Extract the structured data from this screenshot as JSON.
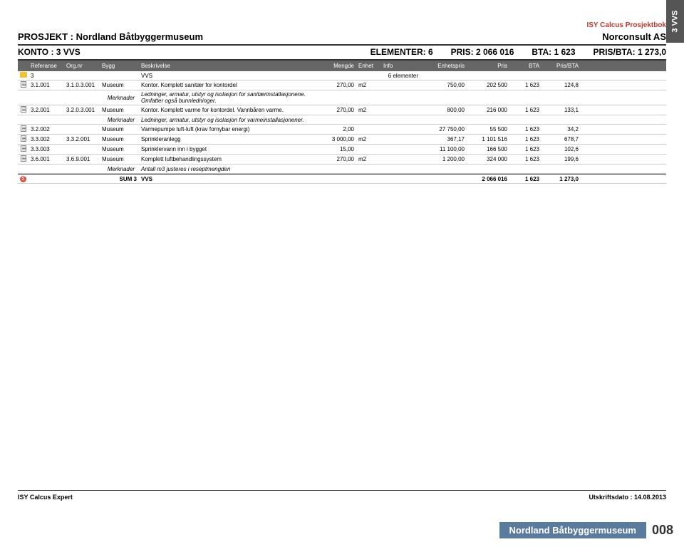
{
  "sideTab": "3 VVS",
  "headerTop": "ISY Calcus Prosjektbok",
  "project": {
    "left": "PROSJEKT : Nordland Båtbyggermuseum",
    "right": "Norconsult AS"
  },
  "konto": {
    "left": "KONTO : 3 VVS",
    "elementer": "ELEMENTER: 6",
    "pris": "PRIS: 2 066 016",
    "bta": "BTA: 1 623",
    "prisbta": "PRIS/BTA: 1 273,0"
  },
  "columns": {
    "ref": "Referanse",
    "org": "Org.nr",
    "bygg": "Bygg",
    "besk": "Beskrivelse",
    "mengde": "Mengde",
    "enhet": "Enhet",
    "info": "Info",
    "enhetspris": "Enhetspris",
    "pris": "Pris",
    "bta": "BTA",
    "prisbta": "Pris/BTA"
  },
  "rows": [
    {
      "type": "folder",
      "ref": "3",
      "org": "",
      "bygg": "",
      "besk": "VVS",
      "mengde": "",
      "enhet": "",
      "info": "6 elementer",
      "enhetspris": "",
      "pris": "",
      "bta": "",
      "prisbta": ""
    },
    {
      "type": "item",
      "ref": "3.1.001",
      "org": "3.1.0.3.001",
      "bygg": "Museum",
      "besk": "Kontor. Komplett sanitær for kontordel",
      "mengde": "270,00",
      "enhet": "m2",
      "info": "",
      "enhetspris": "750,00",
      "pris": "202 500",
      "bta": "1 623",
      "prisbta": "124,8"
    },
    {
      "type": "merknader",
      "bygg": "Merknader",
      "besk": "Ledninger, armatur, utstyr og isolasjon for sanitærinstallasjonene. Omfatter også bunnledninger."
    },
    {
      "type": "item",
      "ref": "3.2.001",
      "org": "3.2.0.3.001",
      "bygg": "Museum",
      "besk": "Kontor. Komplett varme for kontordel. Vannbåren varme.",
      "mengde": "270,00",
      "enhet": "m2",
      "info": "",
      "enhetspris": "800,00",
      "pris": "216 000",
      "bta": "1 623",
      "prisbta": "133,1"
    },
    {
      "type": "merknader",
      "bygg": "Merknader",
      "besk": "Ledninger, armatur, utstyr og isolasjon for varmeinstallasjonener."
    },
    {
      "type": "item",
      "ref": "3.2.002",
      "org": "",
      "bygg": "Museum",
      "besk": "Varmepumpe luft-luft (krav fornybar energi)",
      "mengde": "2,00",
      "enhet": "",
      "info": "",
      "enhetspris": "27 750,00",
      "pris": "55 500",
      "bta": "1 623",
      "prisbta": "34,2"
    },
    {
      "type": "item",
      "ref": "3.3.002",
      "org": "3.3.2.001",
      "bygg": "Museum",
      "besk": "Sprinkleranlegg",
      "mengde": "3 000,00",
      "enhet": "m2",
      "info": "",
      "enhetspris": "367,17",
      "pris": "1 101 516",
      "bta": "1 623",
      "prisbta": "678,7"
    },
    {
      "type": "item",
      "ref": "3.3.003",
      "org": "",
      "bygg": "Museum",
      "besk": "Sprinklervann inn i bygget",
      "mengde": "15,00",
      "enhet": "",
      "info": "",
      "enhetspris": "11 100,00",
      "pris": "166 500",
      "bta": "1 623",
      "prisbta": "102,6"
    },
    {
      "type": "item",
      "ref": "3.6.001",
      "org": "3.6.9.001",
      "bygg": "Museum",
      "besk": "Komplett luftbehandlingssystem",
      "mengde": "270,00",
      "enhet": "m2",
      "info": "",
      "enhetspris": "1 200,00",
      "pris": "324 000",
      "bta": "1 623",
      "prisbta": "199,6"
    },
    {
      "type": "merknader",
      "bygg": "Merknader",
      "besk": "Antall m3 justeres i reseptmengden"
    },
    {
      "type": "sum",
      "ref": "",
      "org": "",
      "bygg": "SUM 3",
      "besk": "VVS",
      "mengde": "",
      "enhet": "",
      "info": "",
      "enhetspris": "",
      "pris": "2 066 016",
      "bta": "1 623",
      "prisbta": "1 273,0"
    }
  ],
  "footer": {
    "left": "ISY Calcus Expert",
    "right": "Utskriftsdato : 14.08.2013"
  },
  "pageFooter": {
    "title": "Nordland Båtbyggermuseum",
    "num": "008"
  }
}
